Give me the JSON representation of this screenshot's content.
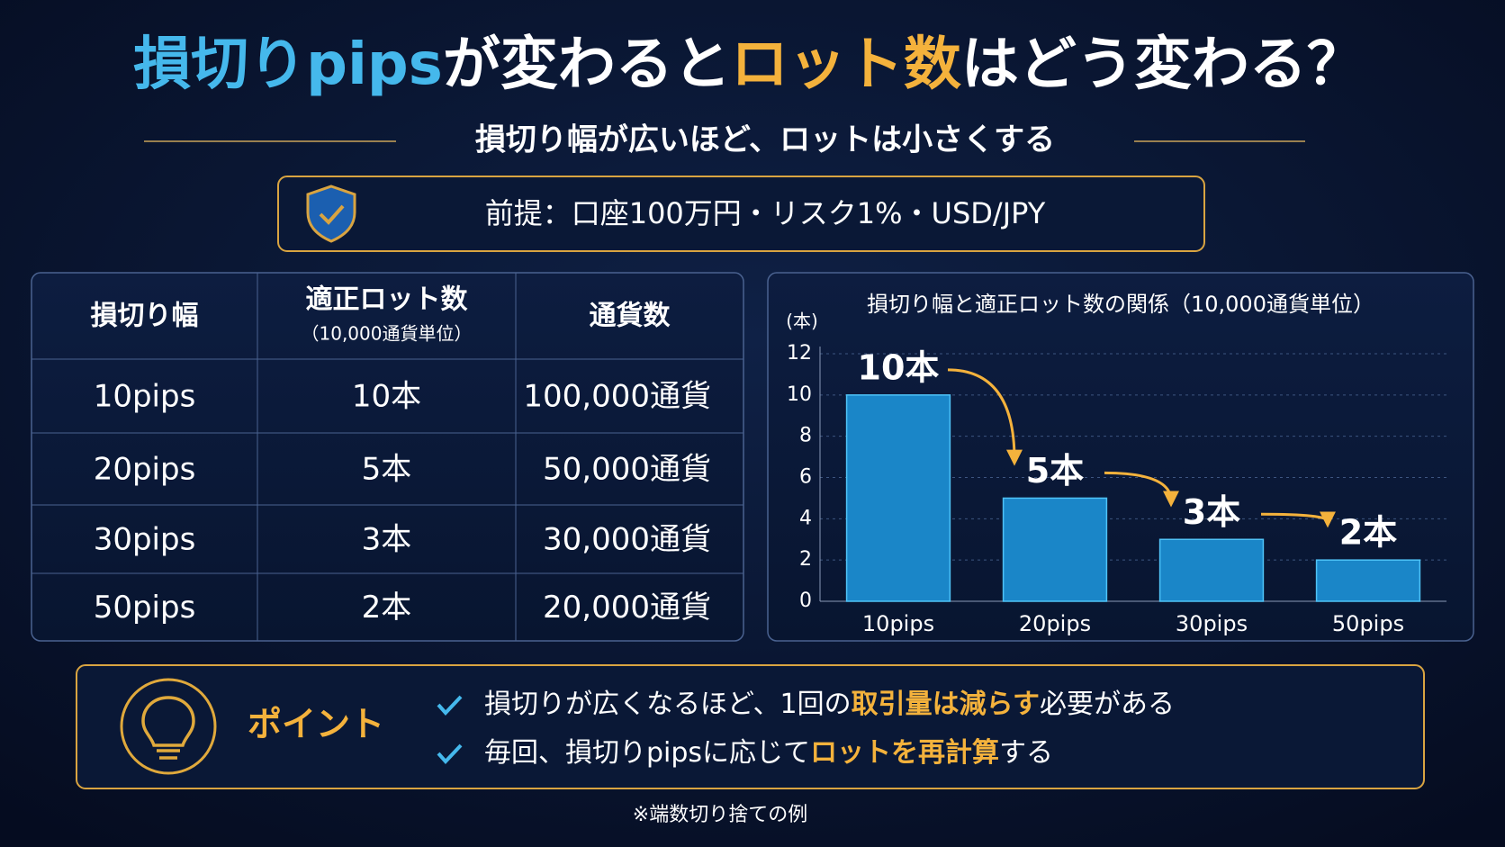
{
  "header": {
    "title": [
      "損切りpips",
      "が変わると",
      "ロット数",
      "はどう変わる？"
    ],
    "subtitle": "損切り幅が広いほど、ロットは小さくする",
    "premise": "前提：口座100万円・リスク1%・USD/JPY"
  },
  "table": {
    "columns": [
      "損切り幅",
      "適正ロット数",
      "通貨数"
    ],
    "column_note": "（10,000通貨単位）",
    "rows": [
      [
        "10pips",
        "10本",
        "100,000通貨"
      ],
      [
        "20pips",
        "5本",
        "50,000通貨"
      ],
      [
        "30pips",
        "3本",
        "30,000通貨"
      ],
      [
        "50pips",
        "2本",
        "20,000通貨"
      ]
    ]
  },
  "chart_data": {
    "type": "bar",
    "title": "損切り幅と適正ロット数の関係（10,000通貨単位）",
    "y_label": "(本)",
    "categories": [
      "10pips",
      "20pips",
      "30pips",
      "50pips"
    ],
    "values": [
      10,
      5,
      3,
      2
    ],
    "value_labels": [
      "10本",
      "5本",
      "3本",
      "2本"
    ],
    "color": "#1a86c8",
    "ylim": [
      0,
      12
    ],
    "yticks": [
      0,
      2,
      4,
      6,
      8,
      10,
      12
    ],
    "grid": true
  },
  "point": {
    "heading": "ポイント",
    "items": [
      [
        "損切りが広くなるほど、1回の",
        "取引量は減らす",
        "必要がある"
      ],
      [
        "毎回、損切りpipsに応じて",
        "ロットを再計算",
        "する"
      ]
    ]
  },
  "footnote": "※端数切り捨ての例"
}
